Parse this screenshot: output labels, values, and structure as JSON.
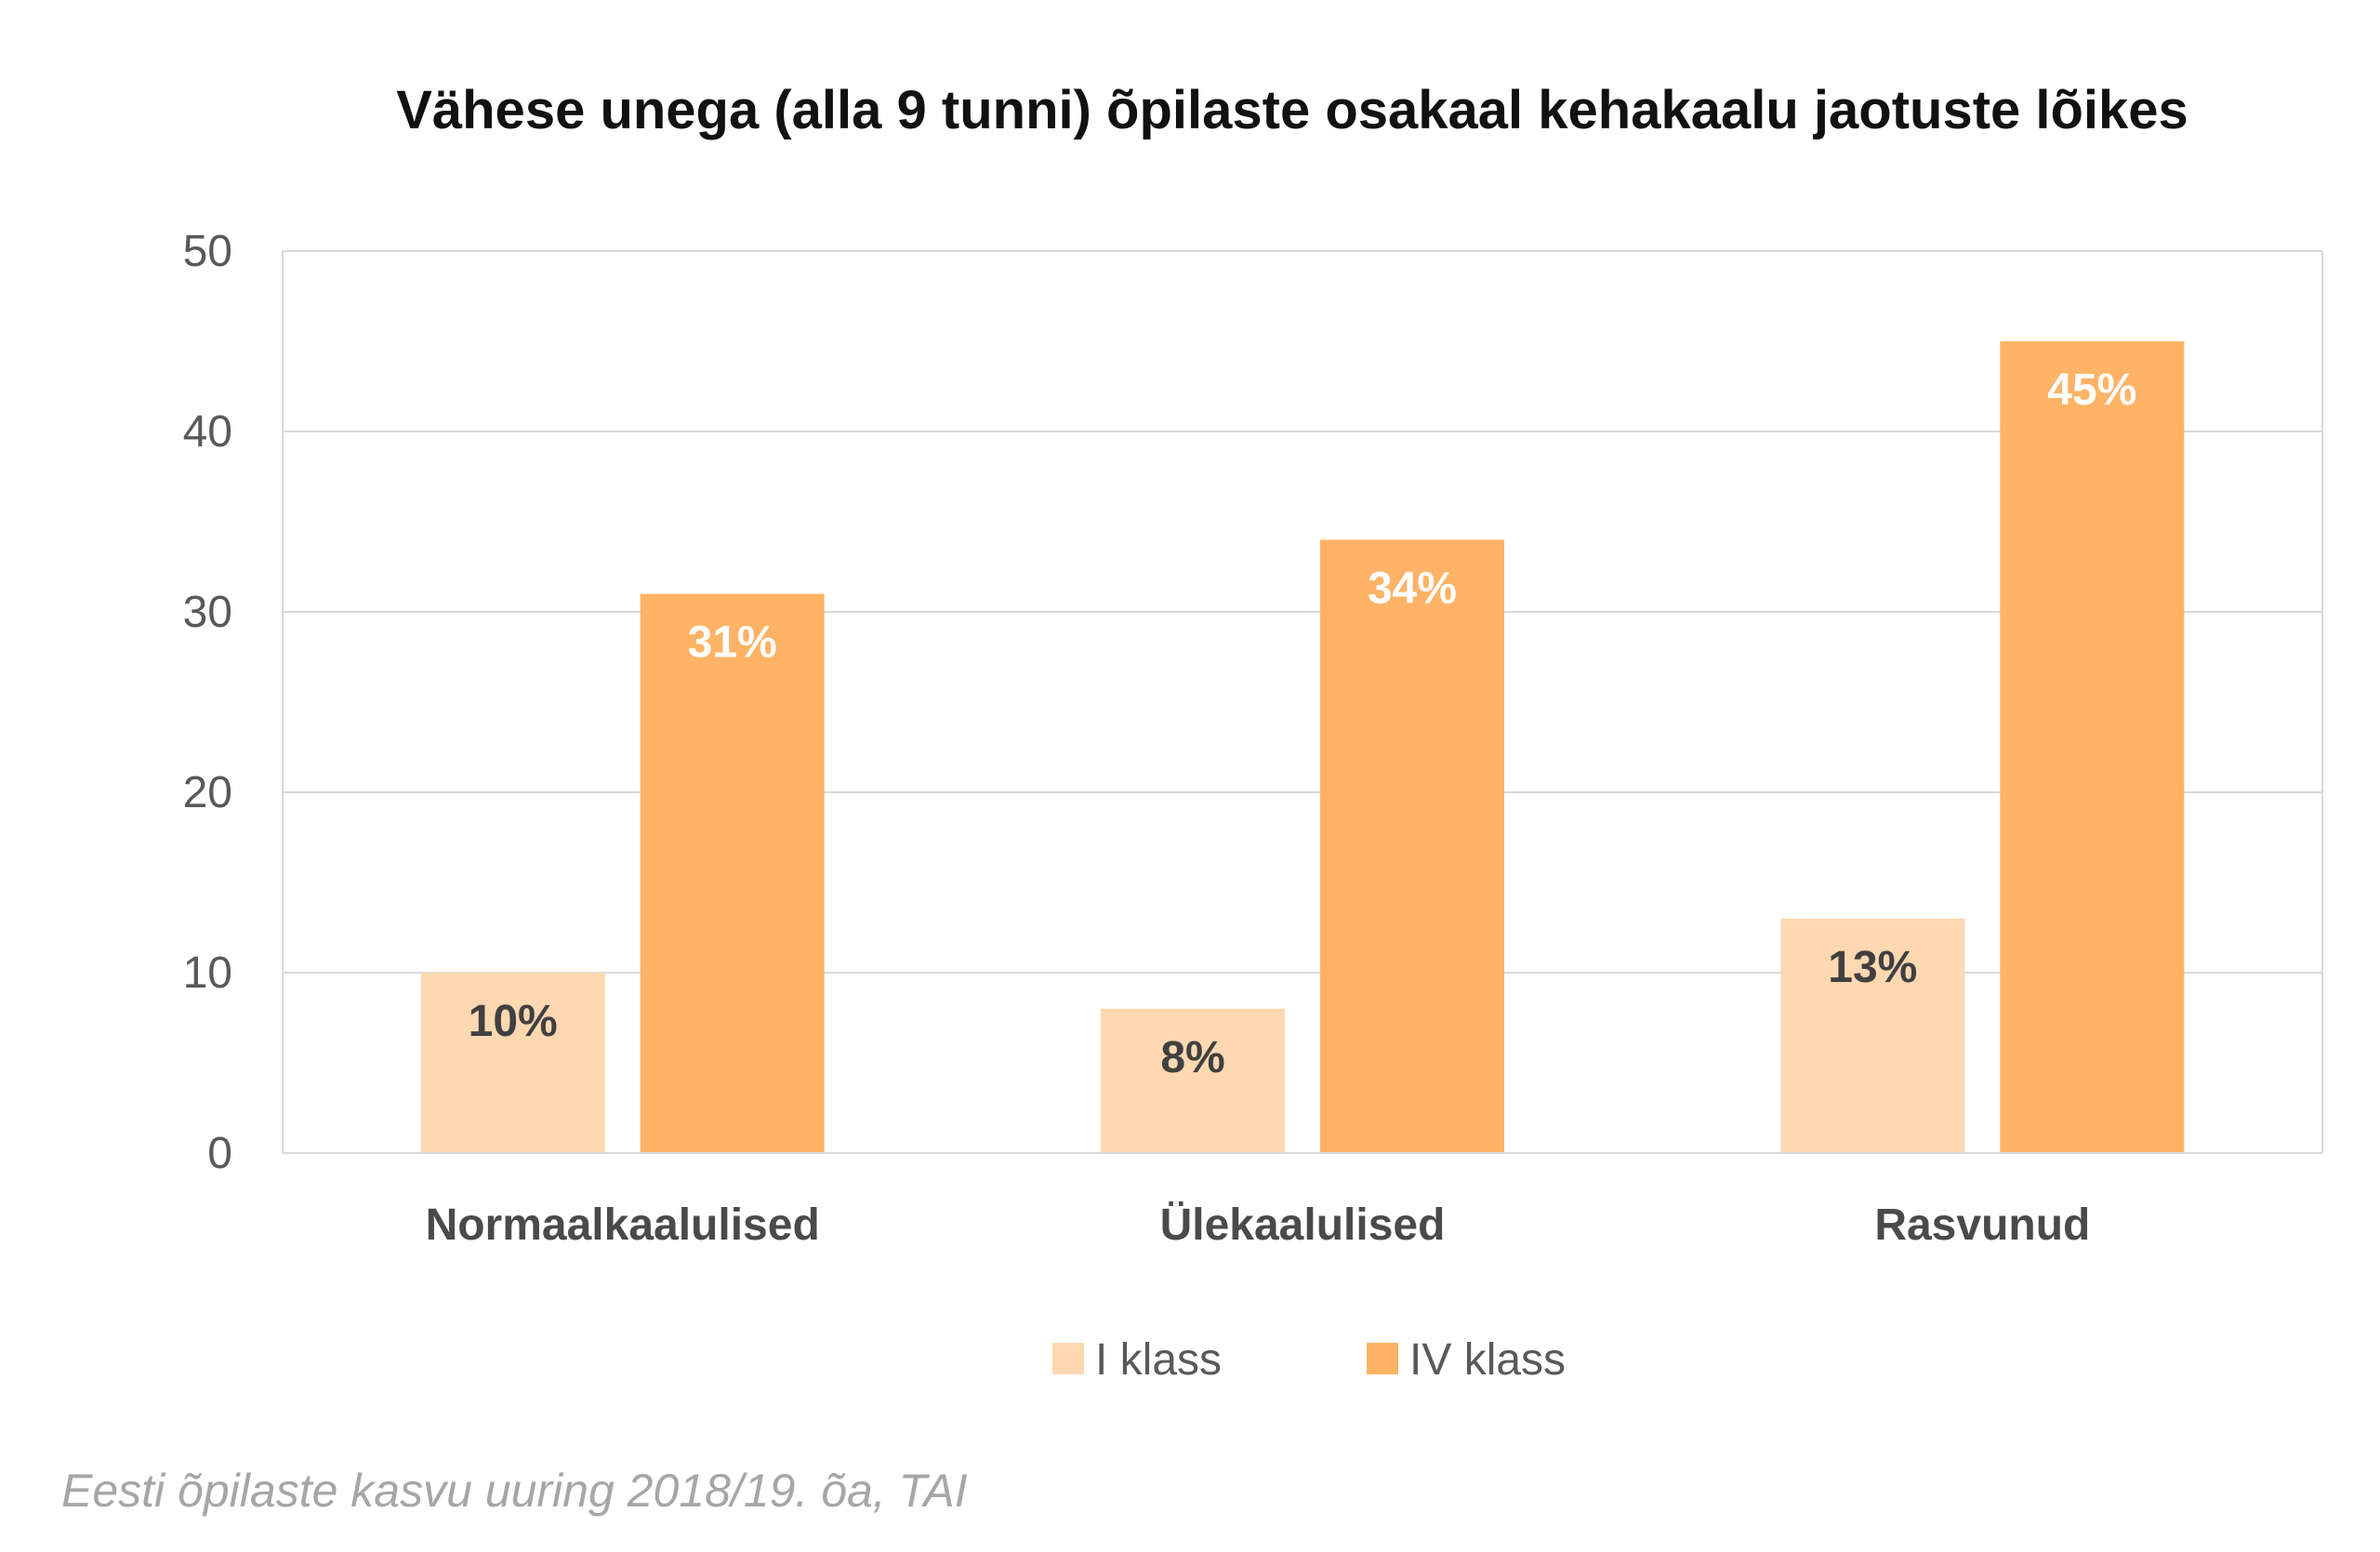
{
  "chart_data": {
    "type": "bar",
    "title": "Vähese unega (alla 9 tunni) õpilaste osakaal kehakaalu jaotuste lõikes",
    "categories": [
      "Normaalkaalulised",
      "Ülekaalulised",
      "Rasvunud"
    ],
    "series": [
      {
        "name": "I klass",
        "values": [
          10,
          8,
          13
        ],
        "labels": [
          "10%",
          "8%",
          "13%"
        ],
        "color": "#fed8b1",
        "label_color": "#404040"
      },
      {
        "name": "IV klass",
        "values": [
          31,
          34,
          45
        ],
        "labels": [
          "31%",
          "34%",
          "45%"
        ],
        "color": "#ffb366",
        "label_color": "#ffffff"
      }
    ],
    "ylim": [
      0,
      50
    ],
    "yticks": [
      0,
      10,
      20,
      30,
      40,
      50
    ],
    "grid": true,
    "legend_position": "bottom"
  },
  "source_note": "Eesti õpilaste kasvu uuring 2018/19. õa, TAI",
  "colors": {
    "gridline": "#d9d9d9",
    "plot_border": "#d9d9d9",
    "background": "#ffffff"
  }
}
